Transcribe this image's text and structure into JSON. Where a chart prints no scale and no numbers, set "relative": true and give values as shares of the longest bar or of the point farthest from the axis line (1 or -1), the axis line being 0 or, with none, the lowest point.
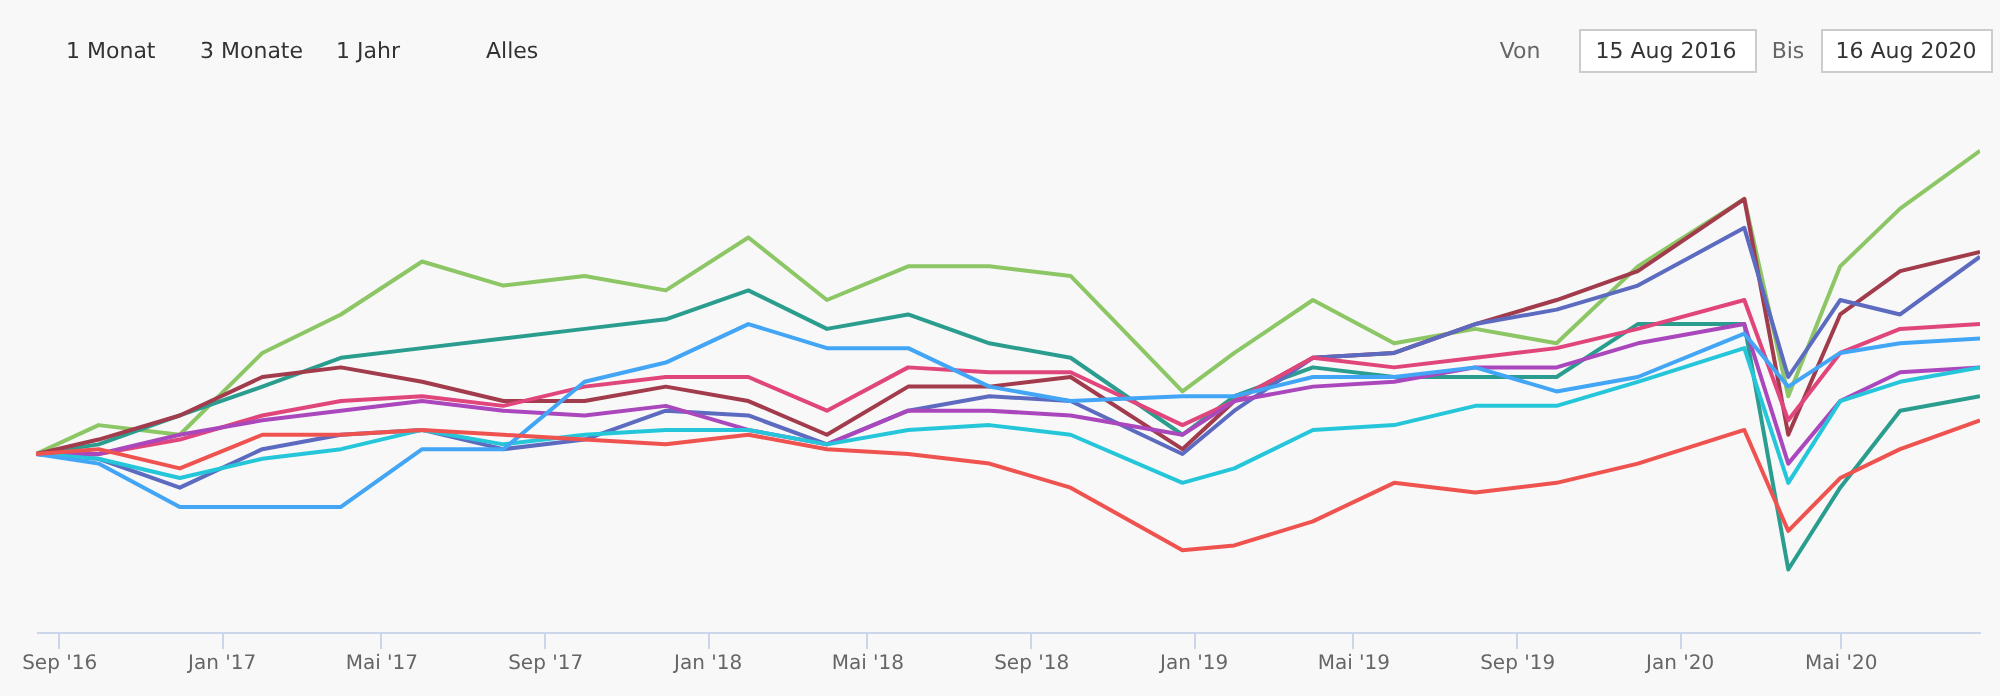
{
  "chart_data": {
    "type": "line",
    "relative": true,
    "x": [
      "2016-08-15",
      "2016-10-01",
      "2016-12-01",
      "2017-02-01",
      "2017-04-01",
      "2017-06-01",
      "2017-08-01",
      "2017-10-01",
      "2017-12-01",
      "2018-02-01",
      "2018-04-01",
      "2018-06-01",
      "2018-08-01",
      "2018-10-01",
      "2018-12-24",
      "2019-02-01",
      "2019-04-01",
      "2019-06-01",
      "2019-08-01",
      "2019-10-01",
      "2019-12-01",
      "2020-02-19",
      "2020-03-23",
      "2020-05-01",
      "2020-06-15",
      "2020-08-14"
    ],
    "series": [
      {
        "color": "#8cc665",
        "values": [
          0.37,
          0.43,
          0.41,
          0.58,
          0.66,
          0.77,
          0.72,
          0.74,
          0.71,
          0.82,
          0.69,
          0.76,
          0.76,
          0.74,
          0.5,
          0.58,
          0.69,
          0.6,
          0.63,
          0.6,
          0.76,
          0.9,
          0.49,
          0.76,
          0.88,
          1.0
        ]
      },
      {
        "color": "#2a9d8f",
        "values": [
          0.37,
          0.39,
          0.45,
          0.51,
          0.57,
          0.59,
          0.61,
          0.63,
          0.65,
          0.71,
          0.63,
          0.66,
          0.6,
          0.57,
          0.41,
          0.49,
          0.55,
          0.53,
          0.53,
          0.53,
          0.64,
          0.64,
          0.13,
          0.3,
          0.46,
          0.49
        ]
      },
      {
        "color": "#a23b4b",
        "values": [
          0.37,
          0.4,
          0.45,
          0.53,
          0.55,
          0.52,
          0.48,
          0.48,
          0.51,
          0.48,
          0.41,
          0.51,
          0.51,
          0.53,
          0.38,
          0.48,
          0.57,
          0.58,
          0.64,
          0.69,
          0.75,
          0.9,
          0.41,
          0.66,
          0.75,
          0.79
        ]
      },
      {
        "color": "#5c6bc0",
        "values": [
          0.37,
          0.36,
          0.3,
          0.38,
          0.41,
          0.42,
          0.38,
          0.4,
          0.46,
          0.45,
          0.39,
          0.46,
          0.49,
          0.48,
          0.37,
          0.46,
          0.57,
          0.58,
          0.64,
          0.67,
          0.72,
          0.84,
          0.53,
          0.69,
          0.66,
          0.78
        ]
      },
      {
        "color": "#e0457b",
        "values": [
          0.37,
          0.37,
          0.4,
          0.45,
          0.48,
          0.49,
          0.47,
          0.51,
          0.53,
          0.53,
          0.46,
          0.55,
          0.54,
          0.54,
          0.43,
          0.48,
          0.57,
          0.55,
          0.57,
          0.59,
          0.63,
          0.69,
          0.44,
          0.58,
          0.63,
          0.64
        ]
      },
      {
        "color": "#ab47bc",
        "values": [
          0.37,
          0.37,
          0.41,
          0.44,
          0.46,
          0.48,
          0.46,
          0.45,
          0.47,
          0.42,
          0.39,
          0.46,
          0.46,
          0.45,
          0.41,
          0.48,
          0.51,
          0.52,
          0.55,
          0.55,
          0.6,
          0.64,
          0.35,
          0.48,
          0.54,
          0.55
        ]
      },
      {
        "color": "#26c6da",
        "values": [
          0.37,
          0.36,
          0.32,
          0.36,
          0.38,
          0.42,
          0.39,
          0.41,
          0.42,
          0.42,
          0.39,
          0.42,
          0.43,
          0.41,
          0.31,
          0.34,
          0.42,
          0.43,
          0.47,
          0.47,
          0.52,
          0.59,
          0.31,
          0.48,
          0.52,
          0.55
        ]
      },
      {
        "color": "#42a5f5",
        "values": [
          0.37,
          0.35,
          0.26,
          0.26,
          0.26,
          0.38,
          0.38,
          0.52,
          0.56,
          0.64,
          0.59,
          0.59,
          0.51,
          0.48,
          0.49,
          0.49,
          0.53,
          0.53,
          0.55,
          0.5,
          0.53,
          0.62,
          0.51,
          0.58,
          0.6,
          0.61
        ]
      },
      {
        "color": "#ef5350",
        "values": [
          0.37,
          0.38,
          0.34,
          0.41,
          0.41,
          0.42,
          0.41,
          0.4,
          0.39,
          0.41,
          0.38,
          0.37,
          0.35,
          0.3,
          0.17,
          0.18,
          0.23,
          0.31,
          0.29,
          0.31,
          0.35,
          0.42,
          0.21,
          0.32,
          0.38,
          0.44
        ]
      }
    ],
    "xlim": [
      "2016-08-15",
      "2020-08-14"
    ],
    "xticks": [
      {
        "value": "2016-09-01",
        "label": "Sep '16"
      },
      {
        "value": "2017-01-01",
        "label": "Jan '17"
      },
      {
        "value": "2017-05-01",
        "label": "Mai '17"
      },
      {
        "value": "2017-09-01",
        "label": "Sep '17"
      },
      {
        "value": "2018-01-01",
        "label": "Jan '18"
      },
      {
        "value": "2018-05-01",
        "label": "Mai '18"
      },
      {
        "value": "2018-09-01",
        "label": "Sep '18"
      },
      {
        "value": "2019-01-01",
        "label": "Jan '19"
      },
      {
        "value": "2019-05-01",
        "label": "Mai '19"
      },
      {
        "value": "2019-09-01",
        "label": "Sep '19"
      },
      {
        "value": "2020-01-01",
        "label": "Jan '20"
      },
      {
        "value": "2020-05-01",
        "label": "Mai '20"
      }
    ],
    "annotations": [
      "1 Monat",
      "3 Monate",
      "1 Jahr",
      "Alles",
      "Von",
      "15 Aug 2016",
      "Bis",
      "16 Aug 2020"
    ]
  }
}
